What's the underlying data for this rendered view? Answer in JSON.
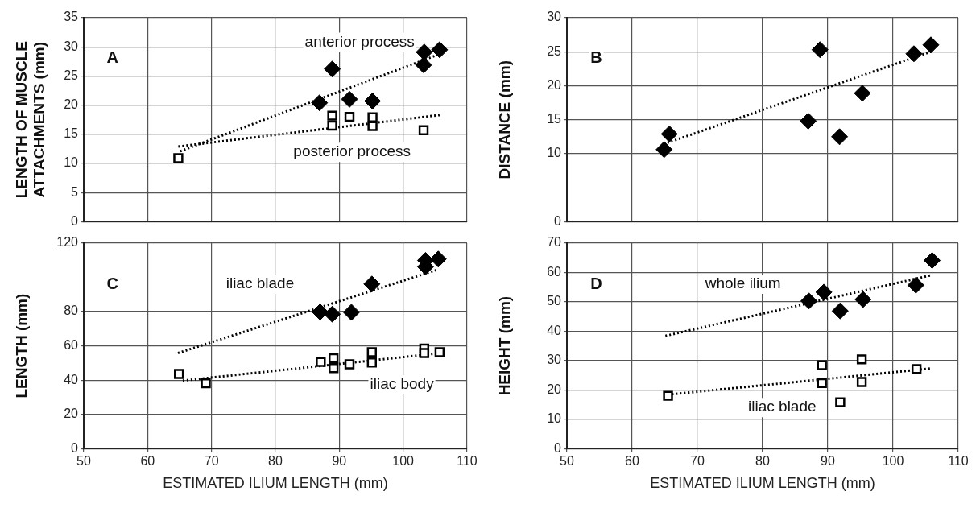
{
  "chart_data": [
    {
      "type": "scatter",
      "ylabel": "LENGTH OF MUSCLE ATTACHMENTS (mm)",
      "xlim": [
        50,
        110
      ],
      "xticks": [
        50,
        60,
        70,
        80,
        90,
        100,
        110
      ],
      "ylim": [
        0,
        35
      ],
      "yticks": [
        0,
        5,
        10,
        15,
        20,
        25,
        30,
        35
      ],
      "grid": true,
      "tick_labels": "y",
      "annotations": [
        "A",
        "anterior process",
        "posterior process"
      ],
      "series": [
        {
          "marker": "diamond",
          "color": "#000000",
          "x": [
            88.9,
            86.9,
            91.6,
            95.2,
            103.3,
            103.2,
            105.7
          ],
          "values": [
            26.2,
            20.4,
            21.0,
            20.7,
            29.1,
            26.9,
            29.5
          ]
        },
        {
          "marker": "square",
          "color": "#000000",
          "x": [
            64.8,
            88.9,
            88.9,
            91.6,
            95.2,
            95.2,
            103.2
          ],
          "values": [
            10.9,
            18.2,
            16.5,
            18.0,
            17.9,
            16.4,
            15.7
          ]
        },
        {
          "type": "line",
          "marker": "none",
          "line_style": "dotted",
          "color": "#000000",
          "x": [
            65.1,
            105.3
          ],
          "values": [
            12.1,
            28.6
          ]
        },
        {
          "type": "line",
          "marker": "none",
          "line_style": "dotted",
          "color": "#000000",
          "x": [
            64.8,
            105.7
          ],
          "values": [
            12.9,
            18.3
          ]
        }
      ]
    },
    {
      "type": "scatter",
      "ylabel": "DISTANCE (mm)",
      "xlim": [
        50,
        110
      ],
      "xticks": [
        50,
        60,
        70,
        80,
        90,
        100,
        110
      ],
      "ylim": [
        0,
        30
      ],
      "yticks": [
        0,
        10,
        15,
        20,
        25,
        30
      ],
      "grid": true,
      "tick_labels": "y",
      "annotations": [
        "B"
      ],
      "series": [
        {
          "marker": "diamond",
          "color": "#000000",
          "x": [
            64.9,
            65.7,
            87.0,
            88.8,
            91.8,
            95.3,
            103.2,
            105.8
          ],
          "values": [
            10.6,
            12.9,
            14.8,
            25.3,
            12.5,
            18.9,
            24.7,
            26.0
          ]
        },
        {
          "type": "line",
          "marker": "none",
          "line_style": "dotted",
          "color": "#000000",
          "x": [
            65.4,
            105.8
          ],
          "values": [
            11.6,
            25.0
          ]
        }
      ]
    },
    {
      "type": "scatter",
      "xlabel": "ESTIMATED ILIUM LENGTH (mm)",
      "ylabel": "LENGTH (mm)",
      "xlim": [
        50,
        110
      ],
      "xticks": [
        50,
        60,
        70,
        80,
        90,
        100,
        110
      ],
      "ylim": [
        0,
        120
      ],
      "yticks": [
        0,
        20,
        40,
        60,
        80,
        120
      ],
      "grid": true,
      "annotations": [
        "C",
        "iliac blade",
        "iliac body"
      ],
      "series": [
        {
          "marker": "diamond",
          "color": "#000000",
          "x": [
            87.0,
            88.9,
            91.9,
            95.1,
            103.5,
            103.5,
            105.5
          ],
          "values": [
            79.8,
            78.5,
            79.6,
            96.1,
            109.9,
            106.2,
            110.7
          ]
        },
        {
          "marker": "square",
          "color": "#000000",
          "x": [
            64.9,
            69.1,
            87.1,
            89.1,
            89.1,
            91.6,
            95.1,
            95.1,
            103.3,
            103.3,
            105.7
          ],
          "values": [
            43.6,
            38.1,
            50.6,
            52.8,
            47.0,
            49.2,
            56.3,
            50.3,
            58.4,
            55.8,
            56.3
          ]
        },
        {
          "type": "line",
          "marker": "none",
          "line_style": "dotted",
          "color": "#000000",
          "x": [
            64.75,
            105.3
          ],
          "values": [
            55.8,
            104.4
          ]
        },
        {
          "type": "line",
          "marker": "none",
          "line_style": "dotted",
          "color": "#000000",
          "x": [
            65.5,
            105.7
          ],
          "values": [
            39.7,
            55.7
          ]
        }
      ]
    },
    {
      "type": "scatter",
      "xlabel": "ESTIMATED ILIUM LENGTH (mm)",
      "ylabel": "HEIGHT (mm)",
      "xlim": [
        50,
        110
      ],
      "xticks": [
        50,
        60,
        70,
        80,
        90,
        100,
        110
      ],
      "ylim": [
        0,
        70
      ],
      "yticks": [
        0,
        10,
        20,
        30,
        40,
        50,
        60,
        70
      ],
      "grid": true,
      "annotations": [
        "D",
        "whole ilium",
        "iliac blade"
      ],
      "series": [
        {
          "marker": "diamond",
          "color": "#000000",
          "x": [
            87.1,
            89.4,
            91.9,
            95.4,
            103.5,
            106.0
          ],
          "values": [
            50.3,
            53.3,
            46.9,
            50.8,
            55.7,
            64.1
          ]
        },
        {
          "marker": "square",
          "color": "#000000",
          "x": [
            65.5,
            89.1,
            89.1,
            91.9,
            95.2,
            95.2,
            103.6
          ],
          "values": [
            18.0,
            28.4,
            22.3,
            15.8,
            30.4,
            22.7,
            27.1
          ]
        },
        {
          "type": "line",
          "marker": "none",
          "line_style": "dotted",
          "color": "#000000",
          "x": [
            65.1,
            105.9
          ],
          "values": [
            38.4,
            59.1
          ]
        },
        {
          "type": "line",
          "marker": "none",
          "line_style": "dotted",
          "color": "#000000",
          "x": [
            66.1,
            105.9
          ],
          "values": [
            18.5,
            27.3
          ]
        }
      ]
    }
  ]
}
